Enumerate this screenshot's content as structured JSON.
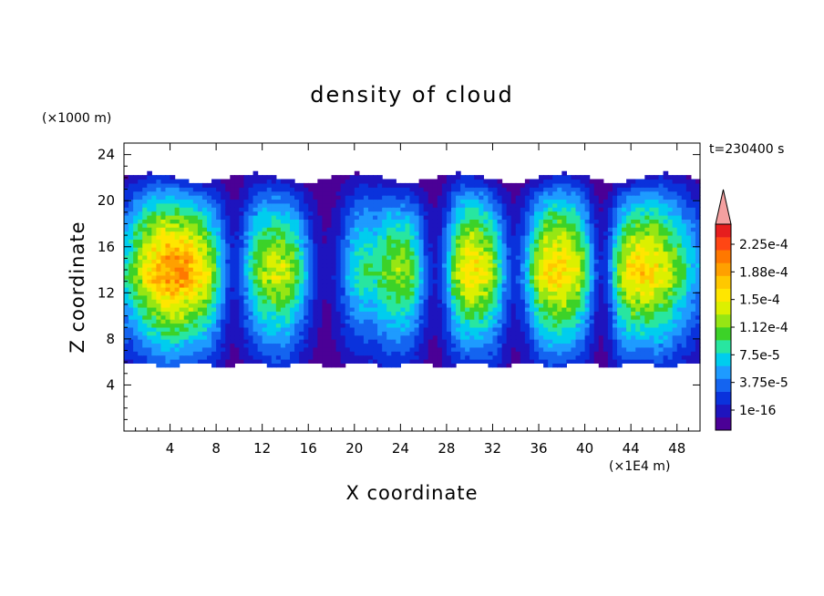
{
  "chart_data": {
    "type": "heatmap",
    "title": "density of cloud",
    "xlabel": "X coordinate",
    "ylabel": "Z coordinate",
    "x_unit": "(×1E4 m)",
    "y_unit": "(×1000 m)",
    "time_label": "t=230400 s",
    "xlim": [
      0,
      50
    ],
    "ylim": [
      0,
      25
    ],
    "x_ticks": [
      "4",
      "8",
      "12",
      "16",
      "20",
      "24",
      "28",
      "32",
      "36",
      "40",
      "44",
      "48"
    ],
    "y_ticks": [
      "4",
      "8",
      "12",
      "16",
      "20",
      "24"
    ],
    "colorbar": {
      "labels": [
        "2.25e-4",
        "1.88e-4",
        "1.5e-4",
        "1.12e-4",
        "7.5e-5",
        "3.75e-5",
        "1e-16"
      ],
      "level_colors": [
        "#4b0096",
        "#1e14be",
        "#0a32dc",
        "#1464f0",
        "#1e9bff",
        "#00cdee",
        "#28e6a0",
        "#3cd228",
        "#96e614",
        "#dcf000",
        "#ffe600",
        "#ffc800",
        "#ffa000",
        "#ff7800",
        "#ff4614",
        "#e61e1e"
      ],
      "max": 0.00025
    },
    "cloud_layer": {
      "base_z": 5.8,
      "top_z": 22.0,
      "peak_density_z": 13.5,
      "cells": [
        {
          "x": 4.5,
          "peak": 0.000205
        },
        {
          "x": 14.0,
          "peak": 0.000155
        },
        {
          "x": 20.0,
          "peak": 0.00012
        },
        {
          "x": 24.5,
          "peak": 0.00014
        },
        {
          "x": 30.0,
          "peak": 0.00017
        },
        {
          "x": 37.5,
          "peak": 0.000175
        },
        {
          "x": 45.0,
          "peak": 0.000175
        }
      ],
      "gaps": [
        {
          "x": 9.5,
          "width": 1.2,
          "depth": 0.55
        },
        {
          "x": 17.5,
          "width": 2.2,
          "depth": 0.8
        },
        {
          "x": 27.0,
          "width": 1.5,
          "depth": 0.75
        },
        {
          "x": 34.0,
          "width": 1.5,
          "depth": 0.6
        },
        {
          "x": 41.5,
          "width": 1.2,
          "depth": 0.7
        }
      ]
    }
  }
}
